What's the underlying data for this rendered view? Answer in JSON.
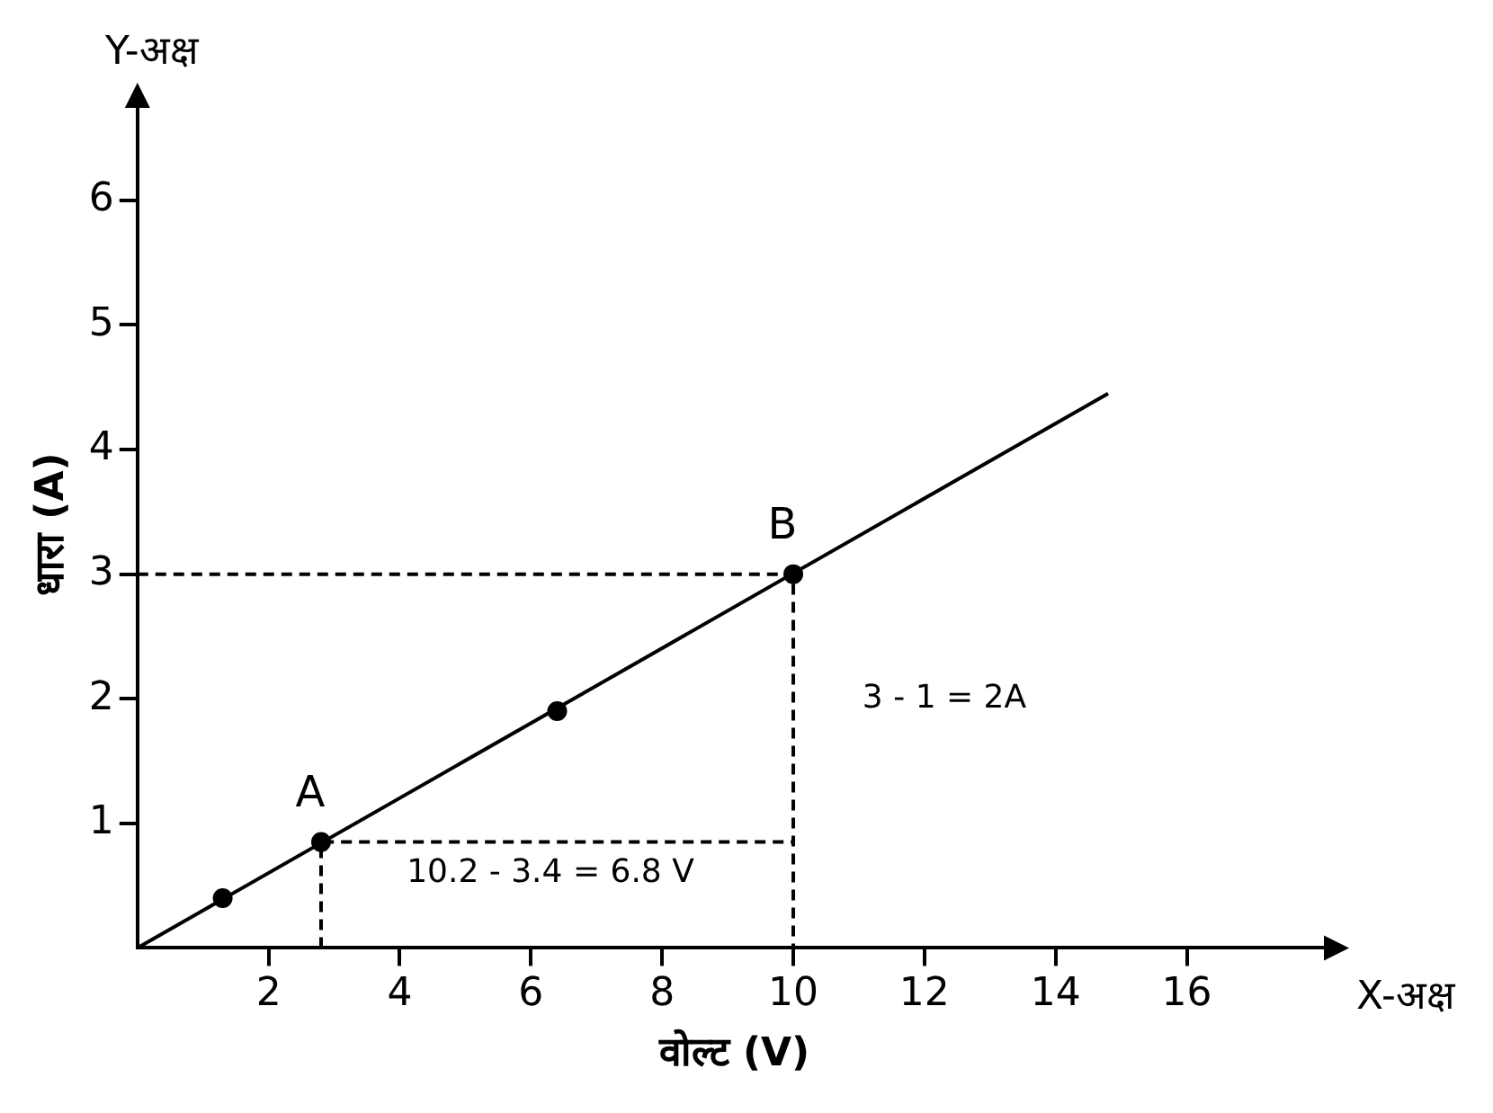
{
  "chart_data": {
    "type": "line",
    "xlabel": "वोल्ट (V)",
    "ylabel": "धारा (A)",
    "xlim": [
      0,
      18.2
    ],
    "ylim": [
      0,
      6.8
    ],
    "xticks": [
      2,
      4,
      6,
      8,
      10,
      12,
      14,
      16
    ],
    "yticks": [
      1,
      2,
      3,
      4,
      5,
      6
    ],
    "grid": false,
    "legend": false,
    "series": [
      {
        "type": "line",
        "x": [
          0,
          14.8
        ],
        "values": [
          0,
          4.45
        ],
        "color": "#000000",
        "marker": "none",
        "line_style": "solid"
      },
      {
        "type": "scatter",
        "x": [
          1.3,
          2.8,
          6.4,
          10
        ],
        "values": [
          0.4,
          0.85,
          1.9,
          3
        ],
        "color": "#000000",
        "marker": "circle"
      },
      {
        "type": "line",
        "x": [
          0,
          10,
          10
        ],
        "values": [
          3,
          3,
          0
        ],
        "color": "#000000",
        "marker": "none",
        "line_style": "dashed"
      },
      {
        "type": "line",
        "x": [
          2.8,
          2.8,
          10
        ],
        "values": [
          0,
          0.85,
          0.85
        ],
        "color": "#000000",
        "marker": "none",
        "line_style": "dashed"
      }
    ],
    "annotations": [
      "Y-अक्ष",
      "X-अक्ष",
      {
        "text": "A",
        "x": 2.8,
        "y": 0.85
      },
      {
        "text": "B",
        "x": 10,
        "y": 3
      },
      "3 - 1 = 2A",
      "10.2 - 3.4 = 6.8 V"
    ]
  }
}
